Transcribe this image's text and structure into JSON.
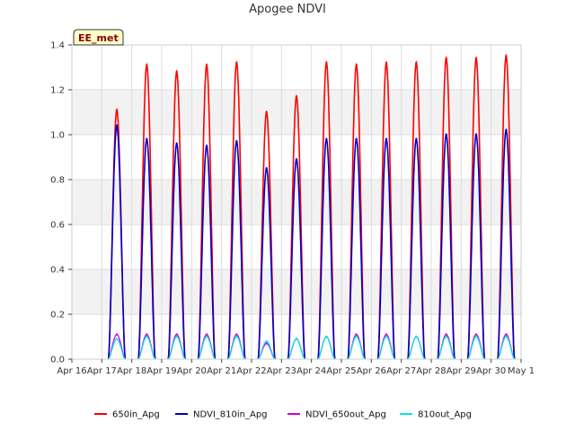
{
  "chart_data": {
    "type": "line",
    "title": "Apogee NDVI",
    "badge": "EE_met",
    "xlabel": "",
    "ylabel": "",
    "x_ticks": [
      "Apr 16",
      "Apr 17",
      "Apr 18",
      "Apr 19",
      "Apr 20",
      "Apr 21",
      "Apr 22",
      "Apr 23",
      "Apr 24",
      "Apr 25",
      "Apr 26",
      "Apr 27",
      "Apr 28",
      "Apr 29",
      "Apr 30",
      "May 1"
    ],
    "xlim": [
      0,
      15
    ],
    "ylim": [
      0,
      1.4
    ],
    "y_ticks": [
      "0.0",
      "0.2",
      "0.4",
      "0.6",
      "0.8",
      "1.0",
      "1.2",
      "1.4"
    ],
    "grid": true,
    "legend_position": "bottom",
    "days_daily_peak": [
      "Apr 17",
      "Apr 18",
      "Apr 19",
      "Apr 20",
      "Apr 21",
      "Apr 22",
      "Apr 23",
      "Apr 24",
      "Apr 25",
      "Apr 26",
      "Apr 27",
      "Apr 28",
      "Apr 29",
      "Apr 30"
    ],
    "series": [
      {
        "name": "650in_Apg",
        "color": "#ff0000",
        "daily_peak": [
          1.11,
          1.31,
          1.28,
          1.31,
          1.32,
          1.1,
          1.17,
          1.32,
          1.31,
          1.32,
          1.32,
          1.34,
          1.34,
          1.35
        ]
      },
      {
        "name": "NDVI_810in_Apg",
        "color": "#0000cc",
        "daily_peak": [
          1.04,
          0.98,
          0.96,
          0.95,
          0.97,
          0.85,
          0.89,
          0.98,
          0.98,
          0.98,
          0.98,
          1.0,
          1.0,
          1.02
        ]
      },
      {
        "name": "NDVI_650out_Apg",
        "color": "#cc00cc",
        "daily_peak": [
          0.11,
          0.11,
          0.11,
          0.11,
          0.11,
          0.07,
          0.09,
          0.1,
          0.11,
          0.11,
          0.1,
          0.11,
          0.11,
          0.11
        ]
      },
      {
        "name": "810out_Apg",
        "color": "#00e5ee",
        "daily_peak": [
          0.09,
          0.1,
          0.1,
          0.1,
          0.1,
          0.08,
          0.09,
          0.1,
          0.1,
          0.1,
          0.1,
          0.1,
          0.1,
          0.1
        ]
      }
    ]
  }
}
